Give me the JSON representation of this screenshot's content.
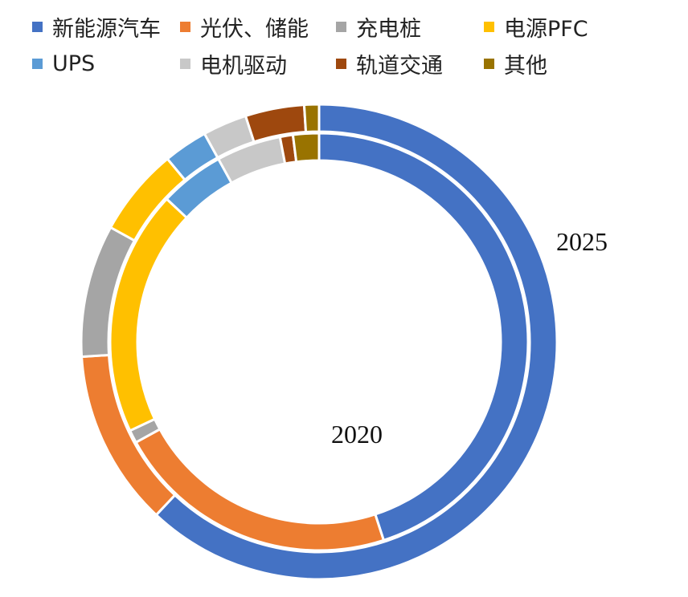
{
  "chart_data": {
    "type": "donut",
    "categories": [
      "新能源汽车",
      "光伏、储能",
      "充电桩",
      "电源PFC",
      "UPS",
      "电机驱动",
      "轨道交通",
      "其他"
    ],
    "colors": [
      "#4472C4",
      "#ED7D31",
      "#A5A5A5",
      "#FFC000",
      "#5B9BD5",
      "#C8C8C8",
      "#9E480E",
      "#997300"
    ],
    "series": [
      {
        "name": "2025",
        "ring": "outer",
        "values": [
          62,
          12,
          9,
          6,
          3,
          3,
          4,
          1
        ]
      },
      {
        "name": "2020",
        "ring": "inner",
        "values": [
          45,
          22,
          1,
          19,
          5,
          5,
          1,
          2
        ]
      }
    ],
    "unit": "%",
    "legend_position": "top"
  }
}
